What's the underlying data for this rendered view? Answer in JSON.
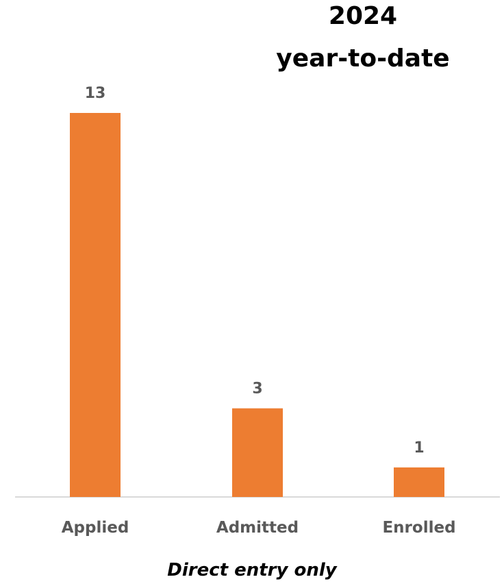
{
  "chart_data": {
    "type": "bar",
    "title_lines": [
      "2024",
      "year-to-date"
    ],
    "categories": [
      "Applied",
      "Admitted",
      "Enrolled"
    ],
    "values": [
      13,
      3,
      1
    ],
    "data_labels": [
      "13",
      "3",
      "1"
    ],
    "bar_color": "#ED7D31",
    "axis_color": "#D9D9D9",
    "label_color": "#595959",
    "grid": false,
    "legend": "none"
  },
  "footnote": "Direct entry only"
}
